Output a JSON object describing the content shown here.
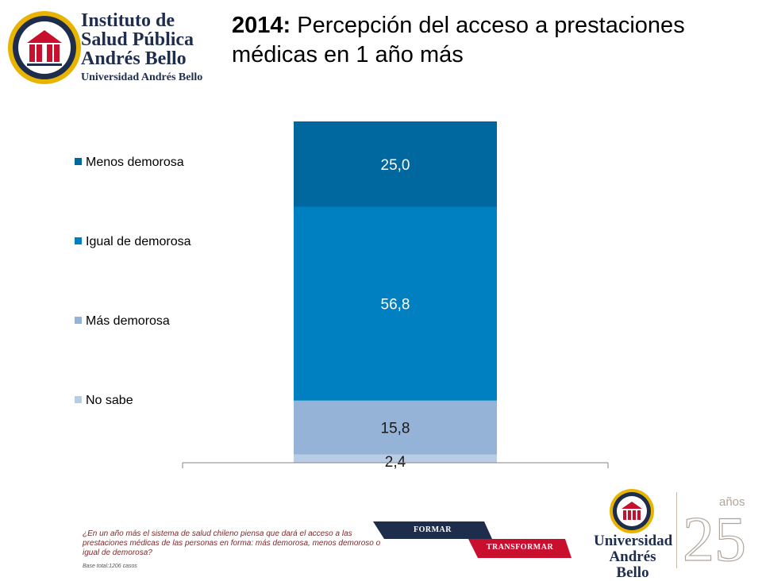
{
  "header": {
    "logo": {
      "line1": "Instituto de",
      "line2": "Salud Pública",
      "line3": "Andrés Bello",
      "line4": "Universidad Andrés Bello"
    },
    "title_year": "2014:",
    "title_rest": "Percepción del acceso a prestaciones médicas en 1 año más"
  },
  "chart_data": {
    "type": "bar",
    "stacked": true,
    "categories": [
      ""
    ],
    "series": [
      {
        "name": "No sabe",
        "values": [
          2.4
        ],
        "label": "2,4",
        "color": "#b8cce4"
      },
      {
        "name": "Más demorosa",
        "values": [
          15.8
        ],
        "label": "15,8",
        "color": "#95b3d7"
      },
      {
        "name": "Igual de demorosa",
        "values": [
          56.8
        ],
        "label": "56,8",
        "color": "#0080c0"
      },
      {
        "name": "Menos demorosa",
        "values": [
          25.0
        ],
        "label": "25,0",
        "color": "#00679f"
      }
    ],
    "ylim": [
      0,
      100
    ],
    "legend_position": "left",
    "legend_order": [
      "Menos demorosa",
      "Igual de demorosa",
      "Más demorosa",
      "No sabe"
    ],
    "grid": false
  },
  "footer": {
    "question": "¿En un año más el sistema de salud chileno piensa que dará el acceso a las prestaciones médicas de las personas en forma: más demorosa, menos demoroso o igual de demorosa?",
    "base": "Base total:1206 casos",
    "banner_formar": "FORMAR",
    "banner_transformar": "TRANSFORMAR",
    "uab_line1": "Universidad",
    "uab_line2": "Andrés Bello",
    "anniversary_number": "25",
    "anniversary_word": "años"
  }
}
